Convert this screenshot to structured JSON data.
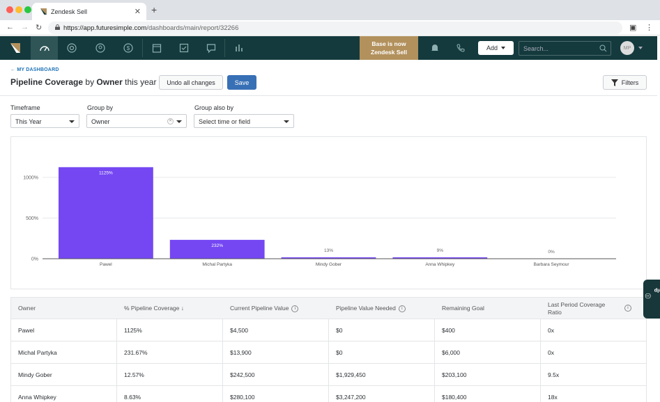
{
  "browser": {
    "tab_title": "Zendesk Sell",
    "url_host": "https://app.futuresimple.com",
    "url_path": "/dashboards/main/report/32266"
  },
  "appbar": {
    "promo_line1": "Base is now",
    "promo_line2": "Zendesk Sell",
    "add_label": "Add",
    "search_placeholder": "Search...",
    "avatar_initials": "MP"
  },
  "header": {
    "back_label": "MY DASHBOARD",
    "title_metric": "Pipeline Coverage",
    "title_by": "by",
    "title_group": "Owner",
    "title_period": "this year",
    "undo_label": "Undo all changes",
    "save_label": "Save",
    "filters_label": "Filters"
  },
  "filters": {
    "timeframe_label": "Timeframe",
    "timeframe_value": "This Year",
    "groupby_label": "Group by",
    "groupby_value": "Owner",
    "groupalso_label": "Group also by",
    "groupalso_value": "Select time or field"
  },
  "chart_data": {
    "type": "bar",
    "categories": [
      "Pawel",
      "Michal Partyka",
      "Mindy Gober",
      "Anna Whipkey",
      "Barbara Seymour"
    ],
    "values": [
      1125,
      232,
      13,
      9,
      0
    ],
    "data_labels": [
      "1125%",
      "232%",
      "13%",
      "9%",
      "0%"
    ],
    "yticks": [
      "0%",
      "500%",
      "1000%"
    ],
    "ytick_values": [
      0,
      500,
      1000
    ],
    "ylim": [
      0,
      1125
    ],
    "grid": true,
    "color": "#7447f3"
  },
  "table": {
    "columns": [
      "Owner",
      "% Pipeline Coverage",
      "Current Pipeline Value",
      "Pipeline Value Needed",
      "Remaining Goal",
      "Last Period Coverage Ratio"
    ],
    "sort_indicator": "↓",
    "rows": [
      [
        "Pawel",
        "1125%",
        "$4,500",
        "$0",
        "$400",
        "0x"
      ],
      [
        "Michal Partyka",
        "231.67%",
        "$13,900",
        "$0",
        "$6,000",
        "0x"
      ],
      [
        "Mindy Gober",
        "12.57%",
        "$242,500",
        "$1,929,450",
        "$203,100",
        "9.5x"
      ],
      [
        "Anna Whipkey",
        "8.63%",
        "$280,100",
        "$3,247,200",
        "$180,400",
        "18x"
      ]
    ]
  },
  "help_label": "Help"
}
